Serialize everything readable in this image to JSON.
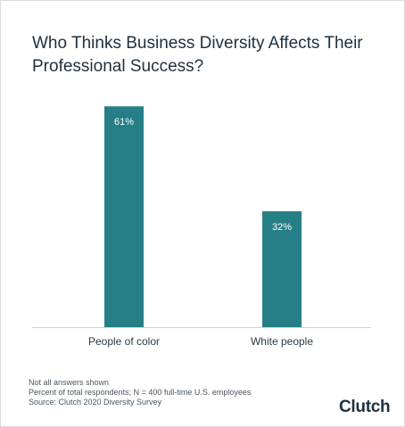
{
  "title": "Who Thinks Business Diversity Affects Their Professional Success?",
  "chart_data": {
    "type": "bar",
    "categories": [
      "People of color",
      "White people"
    ],
    "values": [
      61,
      32
    ],
    "value_labels": [
      "61%",
      "32%"
    ],
    "title": "Who Thinks Business Diversity Affects Their Professional Success?",
    "xlabel": "",
    "ylabel": "",
    "ylim": [
      0,
      65
    ],
    "grid": false,
    "bar_color": "#267f86",
    "label_color": "#ffffff"
  },
  "footer": {
    "note1": "Not all answers shown",
    "note2": "Percent of total respondents; N = 400 full-time U.S. employees",
    "source": "Source: Clutch 2020 Diversity Survey"
  },
  "logo": {
    "text": "Clutch",
    "accent_color": "#e6473b"
  }
}
